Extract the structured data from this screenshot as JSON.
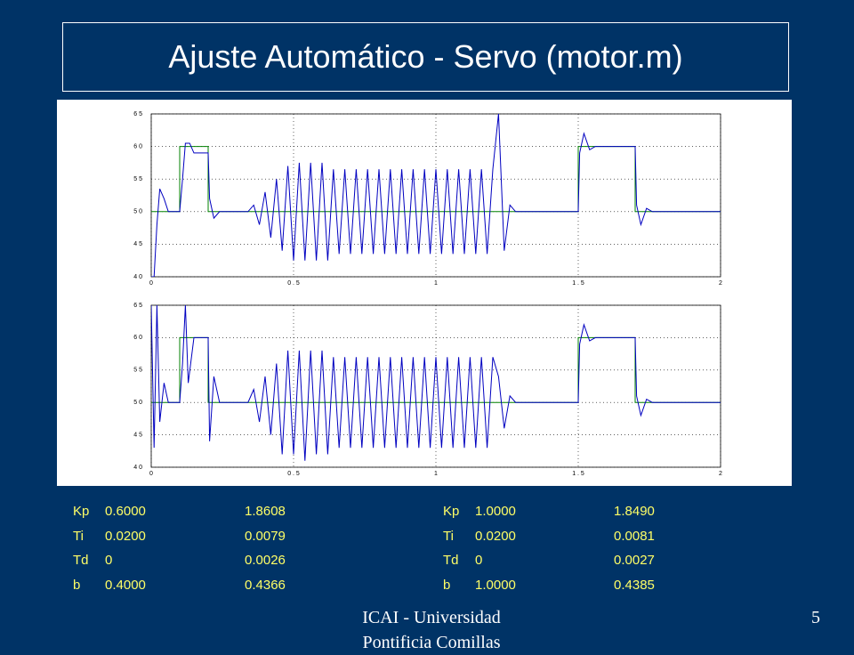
{
  "title": "Ajuste Automático - Servo (motor.m)",
  "chart_data": [
    {
      "type": "line",
      "xlim": [
        0,
        2
      ],
      "ylim": [
        40,
        65
      ],
      "grid": true,
      "xticks": [
        0,
        {
          "value": 0.5,
          "label": "0 . 5"
        },
        1,
        {
          "value": 1.5,
          "label": "1 . 5"
        },
        2
      ],
      "yticks": [
        {
          "value": 40,
          "label": "4 0"
        },
        {
          "value": 45,
          "label": "4 5"
        },
        {
          "value": 50,
          "label": "5 0"
        },
        {
          "value": 55,
          "label": "5 5"
        },
        {
          "value": 60,
          "label": "6 0"
        },
        {
          "value": 65,
          "label": "6 5"
        }
      ],
      "series": [
        {
          "color": "#008000",
          "x": [
            0,
            0.1,
            0.1,
            0.2,
            0.2,
            1.5,
            1.5,
            1.7,
            1.7,
            2
          ],
          "values": [
            50,
            50,
            60,
            60,
            50,
            50,
            60,
            60,
            50,
            50
          ]
        },
        {
          "color": "#0000c0",
          "x": [
            0,
            0.01,
            0.02,
            0.03,
            0.045,
            0.06,
            0.1,
            0.11,
            0.12,
            0.135,
            0.15,
            0.2,
            0.205,
            0.22,
            0.24,
            0.3,
            0.34,
            0.36,
            0.38,
            0.4,
            0.42,
            0.44,
            0.46,
            0.48,
            0.5,
            0.52,
            0.54,
            0.56,
            0.58,
            0.6,
            0.62,
            0.64,
            0.66,
            0.68,
            0.7,
            0.72,
            0.74,
            0.76,
            0.78,
            0.8,
            0.82,
            0.84,
            0.86,
            0.88,
            0.9,
            0.92,
            0.94,
            0.96,
            0.98,
            1,
            1.02,
            1.04,
            1.06,
            1.08,
            1.1,
            1.12,
            1.14,
            1.16,
            1.18,
            1.2,
            1.22,
            1.24,
            1.26,
            1.28,
            1.5,
            1.505,
            1.52,
            1.54,
            1.56,
            1.7,
            1.705,
            1.72,
            1.74,
            1.76,
            2
          ],
          "values": [
            40,
            40,
            48,
            53.5,
            52,
            50,
            50,
            55,
            60.5,
            60.5,
            59,
            59,
            52,
            49,
            50,
            50,
            50,
            51,
            48,
            53,
            46,
            55,
            44,
            57,
            42.5,
            57.5,
            42.5,
            57.5,
            42.5,
            57.5,
            42.5,
            56.5,
            43.5,
            56.5,
            43.5,
            56.5,
            43.5,
            56.5,
            43.5,
            56.5,
            43.5,
            56.5,
            43.5,
            56.5,
            43.5,
            56.5,
            43.5,
            56.5,
            43.5,
            56.5,
            43.5,
            56.5,
            43.5,
            56.5,
            43.5,
            56.5,
            43.5,
            56.5,
            43.5,
            56.5,
            65,
            44,
            51,
            50,
            50,
            59,
            62,
            59.5,
            60,
            60,
            51,
            48,
            50.5,
            50,
            50
          ]
        }
      ]
    },
    {
      "type": "line",
      "xlim": [
        0,
        2
      ],
      "ylim": [
        40,
        65
      ],
      "grid": true,
      "xticks": [
        0,
        {
          "value": 0.5,
          "label": "0 . 5"
        },
        1,
        {
          "value": 1.5,
          "label": "1 . 5"
        },
        2
      ],
      "yticks": [
        {
          "value": 40,
          "label": "4 0"
        },
        {
          "value": 45,
          "label": "4 5"
        },
        {
          "value": 50,
          "label": "5 0"
        },
        {
          "value": 55,
          "label": "5 5"
        },
        {
          "value": 60,
          "label": "6 0"
        },
        {
          "value": 65,
          "label": "6 5"
        }
      ],
      "series": [
        {
          "color": "#008000",
          "x": [
            0,
            0.1,
            0.1,
            0.2,
            0.2,
            1.5,
            1.5,
            1.7,
            1.7,
            2
          ],
          "values": [
            50,
            50,
            60,
            60,
            50,
            50,
            60,
            60,
            50,
            50
          ]
        },
        {
          "color": "#0000c0",
          "x": [
            0,
            0.01,
            0.02,
            0.03,
            0.045,
            0.06,
            0.1,
            0.11,
            0.12,
            0.13,
            0.15,
            0.2,
            0.205,
            0.22,
            0.24,
            0.3,
            0.34,
            0.36,
            0.38,
            0.4,
            0.42,
            0.44,
            0.46,
            0.48,
            0.5,
            0.52,
            0.54,
            0.56,
            0.58,
            0.6,
            0.62,
            0.64,
            0.66,
            0.68,
            0.7,
            0.72,
            0.74,
            0.76,
            0.78,
            0.8,
            0.82,
            0.84,
            0.86,
            0.88,
            0.9,
            0.92,
            0.94,
            0.96,
            0.98,
            1,
            1.02,
            1.04,
            1.06,
            1.08,
            1.1,
            1.12,
            1.14,
            1.16,
            1.18,
            1.2,
            1.22,
            1.24,
            1.26,
            1.28,
            1.5,
            1.505,
            1.52,
            1.54,
            1.56,
            1.7,
            1.705,
            1.72,
            1.74,
            1.76,
            2
          ],
          "values": [
            65,
            43,
            65,
            47,
            53,
            50,
            50,
            56,
            65,
            53,
            60,
            60,
            44,
            54,
            50,
            50,
            50,
            52,
            47,
            54,
            45,
            56,
            42,
            58,
            42,
            58,
            41,
            58,
            42,
            58,
            42,
            57,
            43,
            57,
            43,
            57,
            43,
            57,
            43,
            57,
            43,
            57,
            43,
            57,
            43,
            57,
            43,
            57,
            43,
            57,
            43,
            57,
            43,
            57,
            43,
            57,
            43,
            57,
            43,
            57,
            54,
            46,
            51,
            50,
            50,
            59,
            62,
            59.5,
            60,
            60,
            51,
            48,
            50.5,
            50,
            50
          ]
        }
      ]
    }
  ],
  "parameters": [
    {
      "rows": [
        [
          "Kp",
          "0.6000",
          "1.8608"
        ],
        [
          "Ti",
          "0.0200",
          "0.0079"
        ],
        [
          "Td",
          "0",
          "0.0026"
        ],
        [
          "b",
          "0.4000",
          "0.4366"
        ]
      ]
    },
    {
      "rows": [
        [
          "Kp",
          "1.0000",
          "1.8490"
        ],
        [
          "Ti",
          "0.0200",
          "0.0081"
        ],
        [
          "Td",
          "0",
          "0.0027"
        ],
        [
          "b",
          "1.0000",
          "0.4385"
        ]
      ]
    }
  ],
  "footer": "ICAI - Universidad Pontificia Comillas",
  "page_number": "5"
}
